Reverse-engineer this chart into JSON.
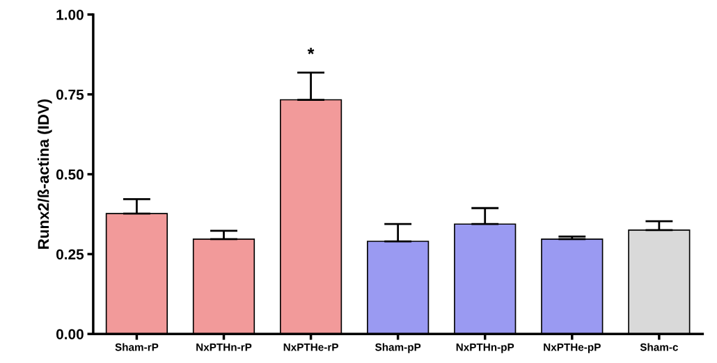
{
  "chart_data": {
    "type": "bar",
    "ylabel": "Runx2/ß-actina (IDV)",
    "categories": [
      "Sham-rP",
      "NxPTHn-rP",
      "NxPTHe-rP",
      "Sham-pP",
      "NxPTHn-pP",
      "NxPTHe-pP",
      "Sham-c"
    ],
    "values": [
      0.377,
      0.297,
      0.733,
      0.29,
      0.344,
      0.297,
      0.325
    ],
    "errors": [
      [
        0.377,
        0.422
      ],
      [
        0.297,
        0.323
      ],
      [
        0.733,
        0.818
      ],
      [
        0.29,
        0.344
      ],
      [
        0.344,
        0.394
      ],
      [
        0.297,
        0.305
      ],
      [
        0.325,
        0.353
      ]
    ],
    "colors": [
      "#f29a9a",
      "#f29a9a",
      "#f29a9a",
      "#9a9af2",
      "#9a9af2",
      "#9a9af2",
      "#d9d9d9"
    ],
    "ylim": [
      0,
      1
    ],
    "yticks": [
      {
        "value": 0,
        "label": "0.00"
      },
      {
        "value": 0.25,
        "label": "0.25"
      },
      {
        "value": 0.5,
        "label": "0.50"
      },
      {
        "value": 0.75,
        "label": "0.75"
      },
      {
        "value": 1,
        "label": "1.00"
      }
    ],
    "annotations": [
      {
        "text": "*",
        "x": "NxPTHe-rP",
        "y": 0.818
      }
    ],
    "grid": false,
    "legend": false
  }
}
